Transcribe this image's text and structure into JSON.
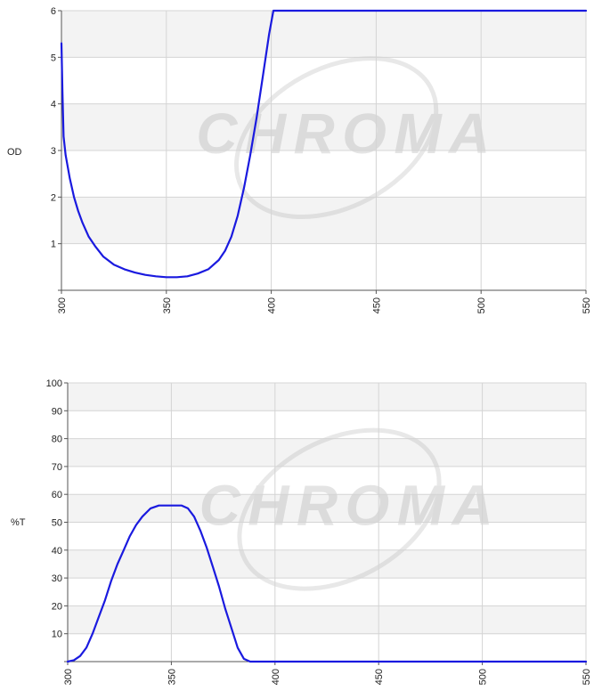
{
  "chart_data": [
    {
      "type": "line",
      "title": "",
      "xlabel": "",
      "ylabel": "OD",
      "xlim": [
        300,
        550
      ],
      "ylim": [
        0,
        6
      ],
      "x_ticks": [
        "300",
        "350",
        "400",
        "450",
        "500",
        "550"
      ],
      "y_ticks": [
        "1",
        "2",
        "3",
        "4",
        "5",
        "6"
      ],
      "grid": true,
      "watermark": "CHROMA",
      "line_color": "#1a1adf",
      "series": [
        {
          "x": [
            300,
            300.5,
            301,
            302,
            304,
            306,
            308,
            310,
            313,
            316,
            320,
            325,
            330,
            335,
            340,
            345,
            350,
            355,
            360,
            365,
            370,
            375,
            378,
            381,
            384,
            387,
            390,
            393,
            396,
            399,
            401,
            403,
            410,
            420,
            450,
            500,
            550
          ],
          "y": [
            5.3,
            4.2,
            3.3,
            2.9,
            2.4,
            2.0,
            1.7,
            1.45,
            1.15,
            0.95,
            0.72,
            0.55,
            0.45,
            0.38,
            0.33,
            0.3,
            0.28,
            0.28,
            0.3,
            0.36,
            0.45,
            0.65,
            0.85,
            1.15,
            1.6,
            2.2,
            2.9,
            3.7,
            4.6,
            5.5,
            6.0,
            6.0,
            6.0,
            6.0,
            6.0,
            6.0,
            6.0
          ]
        }
      ]
    },
    {
      "type": "line",
      "title": "",
      "xlabel": "",
      "ylabel": "%T",
      "xlim": [
        300,
        550
      ],
      "ylim": [
        0,
        100
      ],
      "x_ticks": [
        "300",
        "350",
        "400",
        "450",
        "500",
        "550"
      ],
      "y_ticks": [
        "10",
        "20",
        "30",
        "40",
        "50",
        "60",
        "70",
        "80",
        "90",
        "100"
      ],
      "grid": true,
      "watermark": "CHROMA",
      "line_color": "#1a1adf",
      "series": [
        {
          "x": [
            300,
            303,
            306,
            309,
            312,
            315,
            318,
            321,
            324,
            327,
            330,
            333,
            336,
            340,
            344,
            348,
            352,
            355,
            358,
            361,
            364,
            367,
            370,
            373,
            376,
            379,
            382,
            385,
            388,
            391,
            400,
            450,
            500,
            550
          ],
          "y": [
            0,
            0.5,
            2,
            5,
            10,
            16,
            22,
            29,
            35,
            40,
            45,
            49,
            52,
            55,
            56,
            56,
            56,
            56,
            55,
            52,
            47,
            41,
            34,
            27,
            19,
            12,
            5,
            1,
            0,
            0,
            0,
            0,
            0,
            0
          ]
        }
      ]
    }
  ]
}
